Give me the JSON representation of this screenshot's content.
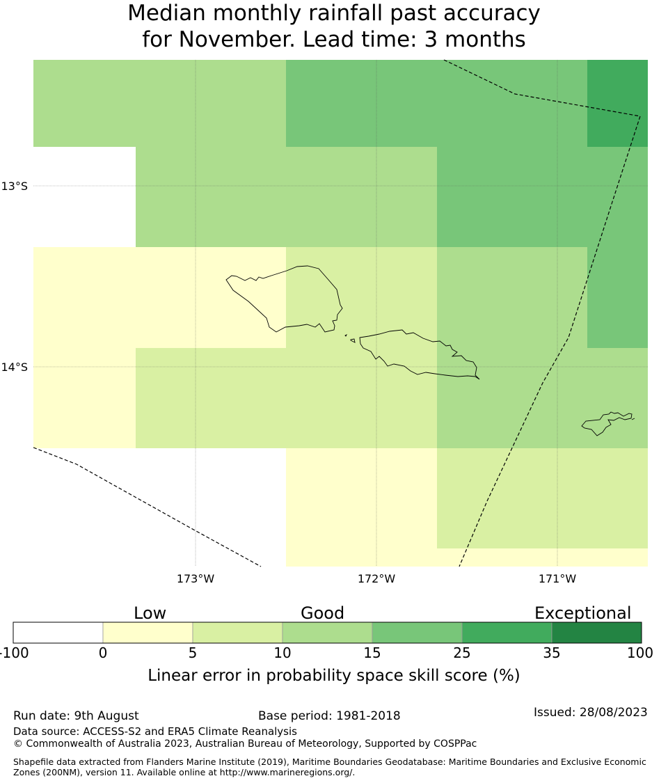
{
  "title": {
    "line1": "Median monthly rainfall past accuracy",
    "line2": "for November. Lead time: 3 months"
  },
  "axes": {
    "lat_labels": [
      "13°S",
      "14°S"
    ],
    "lon_labels": [
      "173°W",
      "172°W",
      "171°W"
    ]
  },
  "colorbar": {
    "category_labels": [
      "Low",
      "Good",
      "Exceptional"
    ],
    "ticks": [
      "-100",
      "0",
      "5",
      "10",
      "15",
      "25",
      "35",
      "100"
    ],
    "colors": [
      "#ffffff",
      "#ffffcc",
      "#d9f0a3",
      "#addd8e",
      "#78c679",
      "#41ab5d",
      "#238443"
    ],
    "title": "Linear error in probability space skill score (%)"
  },
  "footer": {
    "run_date": "Run date: 9th August",
    "base_period": "Base period: 1981-2018",
    "issued": "Issued: 28/08/2023",
    "data_source": "Data source: ACCESS-S2 and ERA5 Climate Reanalysis",
    "copyright": "© Commonwealth of Australia 2023, Australian Bureau of Meteorology, Supported by COSPPac",
    "shapefile": "Shapefile data extracted from Flanders Marine Institute (2019), Maritime Boundaries Geodatabase: Maritime Boundaries and Exclusive Economic Zones (200NM), version 11. Available online at http://www.marineregions.org/."
  },
  "chart_data": {
    "type": "heatmap",
    "title": "Median monthly rainfall past accuracy for November. Lead time: 3 months",
    "xlabel": "",
    "ylabel": "",
    "lon_ticks": [
      "173°W",
      "172°W",
      "171°W"
    ],
    "lat_ticks": [
      "13°S",
      "14°S"
    ],
    "grid": true,
    "colorbar_bounds": [
      -100,
      0,
      5,
      10,
      15,
      25,
      35,
      100
    ],
    "grid_cells_skill_class": [
      [
        "10-15",
        "10-15",
        "15-25",
        "15-25",
        "25-35"
      ],
      [
        "none",
        "10-15",
        "10-15",
        "15-25",
        "15-25"
      ],
      [
        "0-5",
        "0-5",
        "5-10",
        "10-15",
        "15-25"
      ],
      [
        "0-5",
        "5-10",
        "5-10",
        "10-15",
        "10-15"
      ],
      [
        "none",
        "none",
        "0-5",
        "5-10",
        "5-10"
      ]
    ]
  }
}
